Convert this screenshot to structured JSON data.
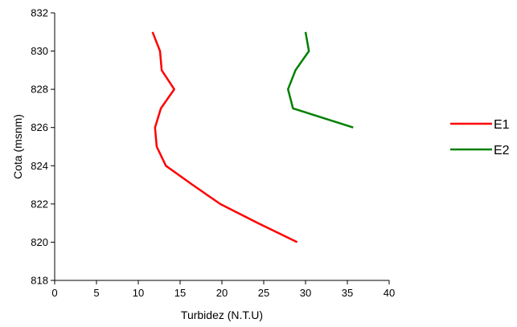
{
  "chart_data": {
    "type": "line",
    "title": "",
    "xlabel": "Turbidez (N.T.U)",
    "ylabel": "Cota (msnm)",
    "xlim": [
      0,
      40
    ],
    "ylim": [
      818,
      832
    ],
    "xticks": [
      "0",
      "5",
      "10",
      "15",
      "20",
      "25",
      "30",
      "35",
      "40"
    ],
    "yticks": [
      "818",
      "820",
      "822",
      "824",
      "826",
      "828",
      "830",
      "832"
    ],
    "grid": false,
    "legend_position": "right",
    "series": [
      {
        "name": "E1",
        "color": "#ff0000",
        "points": [
          [
            11.7,
            831
          ],
          [
            12.6,
            830
          ],
          [
            12.8,
            829
          ],
          [
            14.3,
            828
          ],
          [
            12.7,
            827
          ],
          [
            12.0,
            826
          ],
          [
            12.2,
            825
          ],
          [
            13.3,
            824
          ],
          [
            16.5,
            823
          ],
          [
            19.8,
            822
          ],
          [
            24.3,
            821
          ],
          [
            29.0,
            820
          ]
        ]
      },
      {
        "name": "E2",
        "color": "#008000",
        "points": [
          [
            30.0,
            831
          ],
          [
            30.4,
            830
          ],
          [
            28.8,
            829
          ],
          [
            27.9,
            828
          ],
          [
            28.5,
            827
          ],
          [
            35.7,
            826
          ]
        ]
      }
    ]
  }
}
